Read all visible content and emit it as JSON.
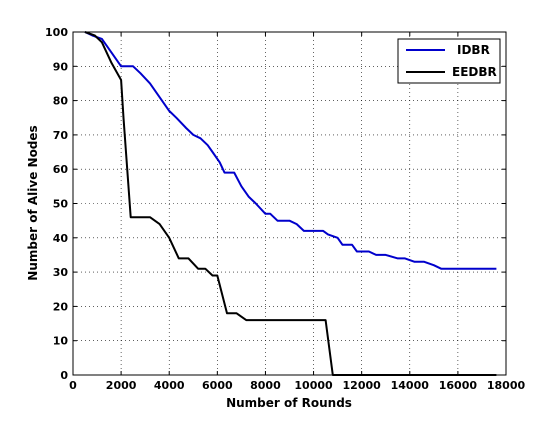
{
  "chart_data": {
    "type": "line",
    "title": "",
    "xlabel": "Number of Rounds",
    "ylabel": "Number of Alive Nodes",
    "xlim": [
      0,
      18000
    ],
    "ylim": [
      0,
      100
    ],
    "xticks": [
      0,
      2000,
      4000,
      6000,
      8000,
      10000,
      12000,
      14000,
      16000,
      18000
    ],
    "yticks": [
      0,
      10,
      20,
      30,
      40,
      50,
      60,
      70,
      80,
      90,
      100
    ],
    "grid": true,
    "legend_position": "top-right",
    "series": [
      {
        "name": "IDBR",
        "color": "#0000cc",
        "x": [
          500,
          800,
          1200,
          1600,
          2000,
          2500,
          2800,
          3200,
          3600,
          4000,
          4300,
          4700,
          5000,
          5300,
          5600,
          5800,
          6100,
          6300,
          6500,
          6700,
          7000,
          7300,
          7600,
          8000,
          8200,
          8500,
          9000,
          9300,
          9600,
          10000,
          10400,
          10600,
          11000,
          11200,
          11600,
          11800,
          12300,
          12600,
          13000,
          13500,
          13800,
          14200,
          14600,
          15000,
          15300,
          16000,
          17600
        ],
        "y": [
          100,
          99,
          98,
          94,
          90,
          90,
          88,
          85,
          81,
          77,
          75,
          72,
          70,
          69,
          67,
          65,
          62,
          59,
          59,
          59,
          55,
          52,
          50,
          47,
          47,
          45,
          45,
          44,
          42,
          42,
          42,
          41,
          40,
          38,
          38,
          36,
          36,
          35,
          35,
          34,
          34,
          33,
          33,
          32,
          31,
          31,
          31
        ]
      },
      {
        "name": "EEDBR",
        "color": "#000000",
        "x": [
          500,
          900,
          1200,
          1600,
          2000,
          2100,
          2400,
          3000,
          3200,
          3600,
          4000,
          4400,
          4800,
          5200,
          5500,
          5800,
          6000,
          6400,
          6800,
          7200,
          7500,
          8000,
          8500,
          9000,
          9500,
          10000,
          10300,
          10500,
          10800,
          11000,
          12000,
          14000,
          16000,
          17600
        ],
        "y": [
          100,
          99,
          97,
          91,
          86,
          75,
          46,
          46,
          46,
          44,
          40,
          34,
          34,
          31,
          31,
          29,
          29,
          18,
          18,
          16,
          16,
          16,
          16,
          16,
          16,
          16,
          16,
          16,
          0,
          0,
          0,
          0,
          0,
          0
        ]
      }
    ]
  }
}
